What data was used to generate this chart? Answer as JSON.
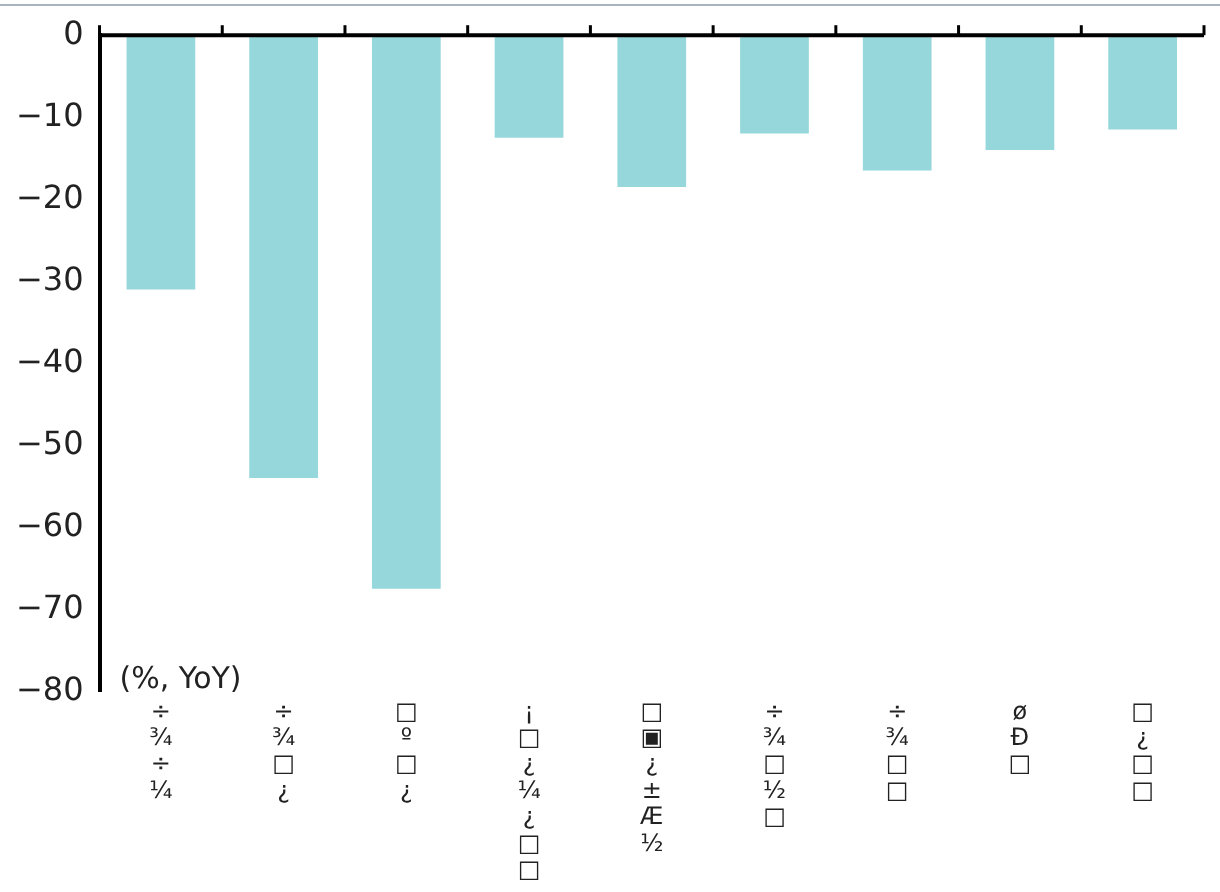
{
  "chart_data": {
    "type": "bar",
    "ylabel": "(%, YoY)",
    "categories": [
      "÷¾÷¼",
      "÷¾□¿",
      "□º□¿",
      "¡□¿¼¿□□",
      "□▣¿±Æ½",
      "÷¾□½□",
      "÷¾□□",
      "øÐ□",
      "□¿□□"
    ],
    "values": [
      -31,
      -54,
      -67.5,
      -12.5,
      -18.5,
      -12,
      -16.5,
      -14,
      -11.5
    ],
    "color": "#96d7dc",
    "ylim": [
      -80,
      0
    ],
    "yticks": [
      -80,
      -70,
      -60,
      -50,
      -40,
      -30,
      -20,
      -10,
      0
    ],
    "grid": false,
    "legend": false
  }
}
